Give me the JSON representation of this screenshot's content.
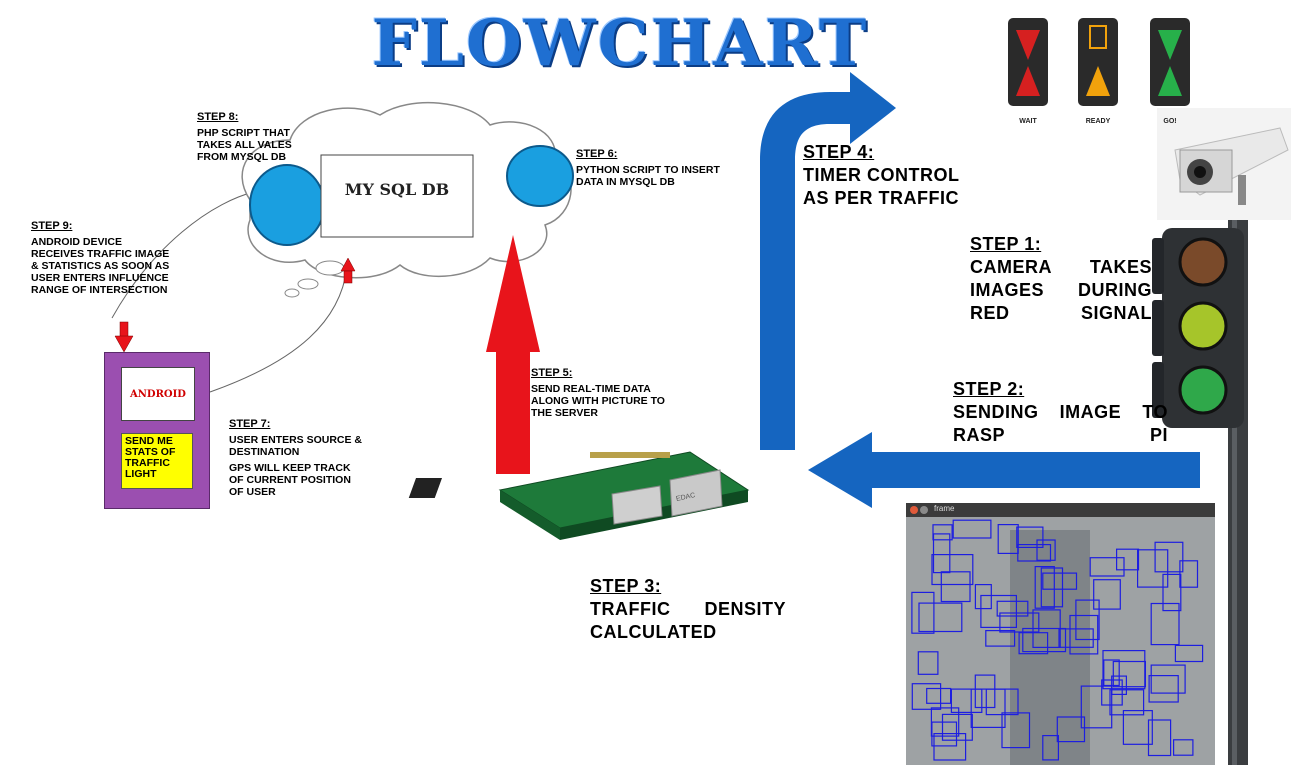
{
  "title": "FLOWCHART",
  "cloud": {
    "db_label": "MY SQL DB"
  },
  "phone": {
    "app_label": "ANDROID",
    "button_label": "SEND ME STATS OF TRAFFIC LIGHT"
  },
  "lights": [
    {
      "label": "WAIT"
    },
    {
      "label": "READY"
    },
    {
      "label": "GO!"
    }
  ],
  "frame_window": {
    "title": "frame"
  },
  "board": {
    "brand": "EDAC"
  },
  "steps": {
    "step1": {
      "heading": "STEP 1:",
      "text": "CAMERA TAKES IMAGES DURING RED SIGNAL"
    },
    "step2": {
      "heading": "STEP 2:",
      "text": "SENDING IMAGE TO RASP PI"
    },
    "step3": {
      "heading": "STEP 3:",
      "text": "TRAFFIC DENSITY CALCULATED"
    },
    "step4": {
      "heading": "STEP 4:",
      "text": "TIMER CONTROL AS PER TRAFFIC"
    },
    "step5": {
      "heading": "STEP 5:",
      "text": "SEND REAL-TIME DATA ALONG WITH PICTURE TO THE SERVER"
    },
    "step6": {
      "heading": "STEP 6:",
      "text": "PYTHON SCRIPT TO INSERT DATA IN MYSQL DB"
    },
    "step7": {
      "heading": "STEP 7:",
      "text": "USER ENTERS SOURCE & DESTINATION",
      "text2": "GPS WILL KEEP TRACK OF CURRENT POSITION OF USER"
    },
    "step8": {
      "heading": "STEP 8:",
      "text": "PHP SCRIPT THAT TAKES ALL VALES FROM MYSQL DB"
    },
    "step9": {
      "heading": "STEP 9:",
      "text": "ANDROID DEVICE RECEIVES TRAFFIC IMAGE & STATISTICS AS SOON AS USER ENTERS INFLUENCE RANGE OF INTERSECTION"
    }
  },
  "colors": {
    "title": "#1f6fd1",
    "arrow_blue": "#1565c0",
    "arrow_red": "#e8141b",
    "phone": "#9b4fb0",
    "button": "#ffff00",
    "blob": "#1a9fe0"
  }
}
